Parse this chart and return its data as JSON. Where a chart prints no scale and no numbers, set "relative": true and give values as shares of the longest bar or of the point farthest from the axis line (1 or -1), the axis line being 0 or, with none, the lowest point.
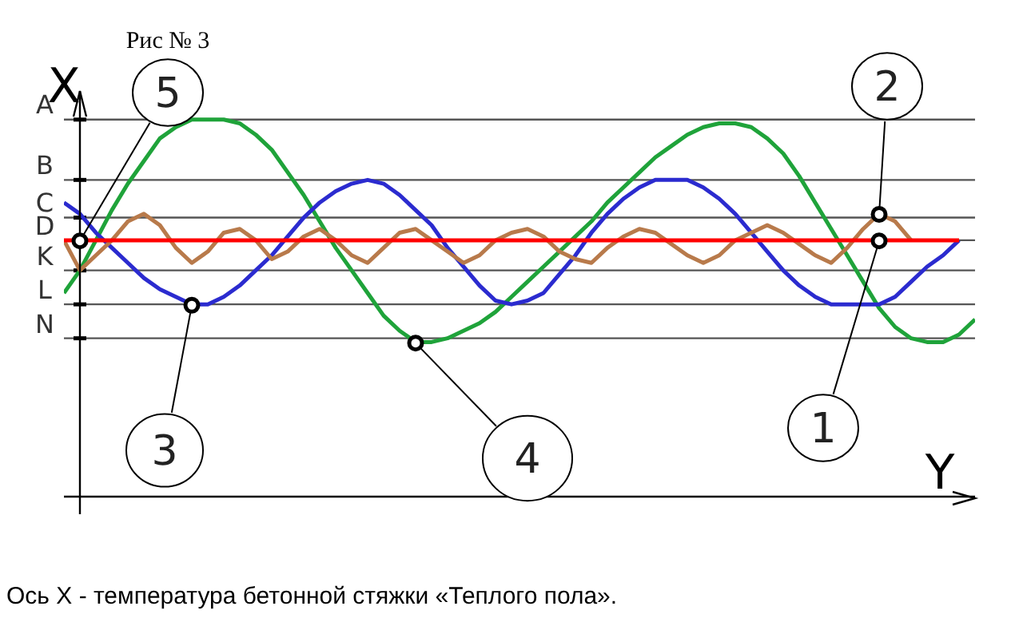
{
  "chart_data": {
    "type": "line",
    "title": "Рис № 3",
    "xlabel": "Y",
    "ylabel": "X",
    "relative": true,
    "marker": "none",
    "categories": [
      null,
      null,
      null,
      null,
      null,
      null,
      null,
      null,
      null,
      null,
      null,
      null,
      null,
      null,
      null,
      null,
      null,
      null,
      null,
      null,
      null,
      null,
      null,
      null,
      null,
      null,
      null,
      null,
      null,
      null,
      null,
      null,
      null,
      null,
      null,
      null,
      null,
      null,
      null,
      null,
      null,
      null,
      null,
      null,
      null,
      null,
      null,
      null,
      null,
      null,
      null,
      null,
      null,
      null,
      null,
      null,
      null,
      null
    ],
    "series": [
      {
        "color": "#1fa33a",
        "values": [
          0.54,
          0.6,
          0.68,
          0.76,
          0.83,
          0.89,
          0.95,
          0.98,
          1.0,
          1.0,
          1.0,
          0.99,
          0.96,
          0.92,
          0.86,
          0.8,
          0.73,
          0.66,
          0.6,
          0.54,
          0.48,
          0.44,
          0.41,
          0.41,
          0.42,
          0.44,
          0.46,
          0.49,
          0.53,
          0.57,
          0.61,
          0.65,
          0.69,
          0.73,
          0.78,
          0.82,
          0.86,
          0.9,
          0.93,
          0.96,
          0.98,
          0.99,
          0.99,
          0.98,
          0.95,
          0.91,
          0.85,
          0.78,
          0.71,
          0.64,
          0.57,
          0.5,
          0.45,
          0.42,
          0.41,
          0.41,
          0.43,
          0.47
        ]
      },
      {
        "color": "#2b2bcf",
        "values": [
          0.78,
          0.75,
          0.7,
          0.66,
          0.62,
          0.58,
          0.55,
          0.53,
          0.51,
          0.51,
          0.53,
          0.56,
          0.6,
          0.64,
          0.69,
          0.74,
          0.78,
          0.81,
          0.83,
          0.84,
          0.83,
          0.8,
          0.76,
          0.72,
          0.66,
          0.61,
          0.56,
          0.52,
          0.51,
          0.52,
          0.54,
          0.59,
          0.64,
          0.7,
          0.75,
          0.79,
          0.82,
          0.84,
          0.84,
          0.84,
          0.82,
          0.79,
          0.75,
          0.7,
          0.65,
          0.6,
          0.56,
          0.53,
          0.51,
          0.51,
          0.51,
          0.51,
          0.53,
          0.57,
          0.61,
          0.64,
          0.68,
          null
        ]
      },
      {
        "color": "#b87a4b",
        "values": [
          0.68,
          0.6,
          0.64,
          0.68,
          0.73,
          0.75,
          0.72,
          0.66,
          0.62,
          0.65,
          0.7,
          0.71,
          0.68,
          0.63,
          0.65,
          0.69,
          0.71,
          0.68,
          0.64,
          0.62,
          0.66,
          0.7,
          0.71,
          0.68,
          0.65,
          0.62,
          0.64,
          0.68,
          0.7,
          0.71,
          0.69,
          0.65,
          0.63,
          0.62,
          0.66,
          0.69,
          0.71,
          0.7,
          0.67,
          0.64,
          0.62,
          0.64,
          0.68,
          0.7,
          0.72,
          0.7,
          0.67,
          0.64,
          0.62,
          0.66,
          0.71,
          0.75,
          0.73,
          0.68,
          null,
          null,
          null,
          null
        ]
      },
      {
        "color": "#ff0000",
        "values": [
          0.68,
          0.68,
          0.68,
          0.68,
          0.68,
          0.68,
          0.68,
          0.68,
          0.68,
          0.68,
          0.68,
          0.68,
          0.68,
          0.68,
          0.68,
          0.68,
          0.68,
          0.68,
          0.68,
          0.68,
          0.68,
          0.68,
          0.68,
          0.68,
          0.68,
          0.68,
          0.68,
          0.68,
          0.68,
          0.68,
          0.68,
          0.68,
          0.68,
          0.68,
          0.68,
          0.68,
          0.68,
          0.68,
          0.68,
          0.68,
          0.68,
          0.68,
          0.68,
          0.68,
          0.68,
          0.68,
          0.68,
          0.68,
          0.68,
          0.68,
          0.68,
          0.68,
          0.68,
          0.68,
          0.68,
          0.68,
          0.68,
          null
        ]
      }
    ],
    "ref_lines": [
      {
        "axis": "y",
        "value": 1.0,
        "label": "A",
        "color": "#555555"
      },
      {
        "axis": "y",
        "value": 0.84,
        "label": "B",
        "color": "#555555"
      },
      {
        "axis": "y",
        "value": 0.74,
        "label": "C",
        "color": "#555555"
      },
      {
        "axis": "y",
        "value": 0.68,
        "label": "D",
        "color": "#555555"
      },
      {
        "axis": "y",
        "value": 0.6,
        "label": "K",
        "color": "#555555"
      },
      {
        "axis": "y",
        "value": 0.51,
        "label": "L",
        "color": "#555555"
      },
      {
        "axis": "y",
        "value": 0.42,
        "label": "N",
        "color": "#555555"
      }
    ],
    "annotations": [
      "1",
      "2",
      "3",
      "4",
      "5",
      "Ось X -    температура бетонной стяжки  «Теплого пола»."
    ]
  }
}
